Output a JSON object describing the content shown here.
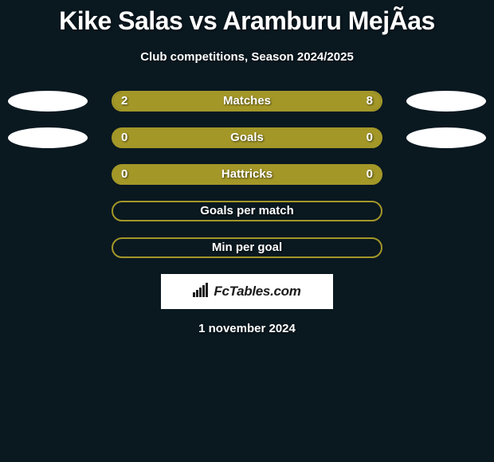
{
  "background_color": "#0a1820",
  "title": {
    "text": "Kike Salas vs Aramburu MejÃ­as",
    "color": "#ffffff",
    "fontsize": 32,
    "fontweight": 900
  },
  "subtitle": {
    "text": "Club competitions, Season 2024/2025",
    "color": "#ffffff",
    "fontsize": 15,
    "fontweight": 700
  },
  "oval_color": "#ffffff",
  "rows": [
    {
      "metric": "Matches",
      "left_val": "2",
      "right_val": "8",
      "left_pct": 20,
      "right_pct": 80,
      "show_ovals": true,
      "fill": true,
      "bar_color": "#a39728",
      "border_color": "#a39728",
      "fill_style": "split"
    },
    {
      "metric": "Goals",
      "left_val": "0",
      "right_val": "0",
      "left_pct": 0,
      "right_pct": 0,
      "show_ovals": true,
      "fill": true,
      "bar_color": "#a39728",
      "border_color": "#a39728",
      "fill_style": "full"
    },
    {
      "metric": "Hattricks",
      "left_val": "0",
      "right_val": "0",
      "left_pct": 0,
      "right_pct": 0,
      "show_ovals": false,
      "fill": true,
      "bar_color": "#a39728",
      "border_color": "#a39728",
      "fill_style": "full"
    },
    {
      "metric": "Goals per match",
      "left_val": "",
      "right_val": "",
      "left_pct": 0,
      "right_pct": 0,
      "show_ovals": false,
      "fill": false,
      "bar_color": "#a39728",
      "border_color": "#a39728",
      "fill_style": "none"
    },
    {
      "metric": "Min per goal",
      "left_val": "",
      "right_val": "",
      "left_pct": 0,
      "right_pct": 0,
      "show_ovals": false,
      "fill": false,
      "bar_color": "#a39728",
      "border_color": "#a39728",
      "fill_style": "none"
    }
  ],
  "brand": {
    "text": "FcTables.com",
    "background": "#ffffff",
    "text_color": "#1a1a1a",
    "fontsize": 17
  },
  "date": {
    "text": "1 november 2024",
    "color": "#ffffff",
    "fontsize": 15
  },
  "text_shadow_color": "rgba(0,0,0,0.6)"
}
